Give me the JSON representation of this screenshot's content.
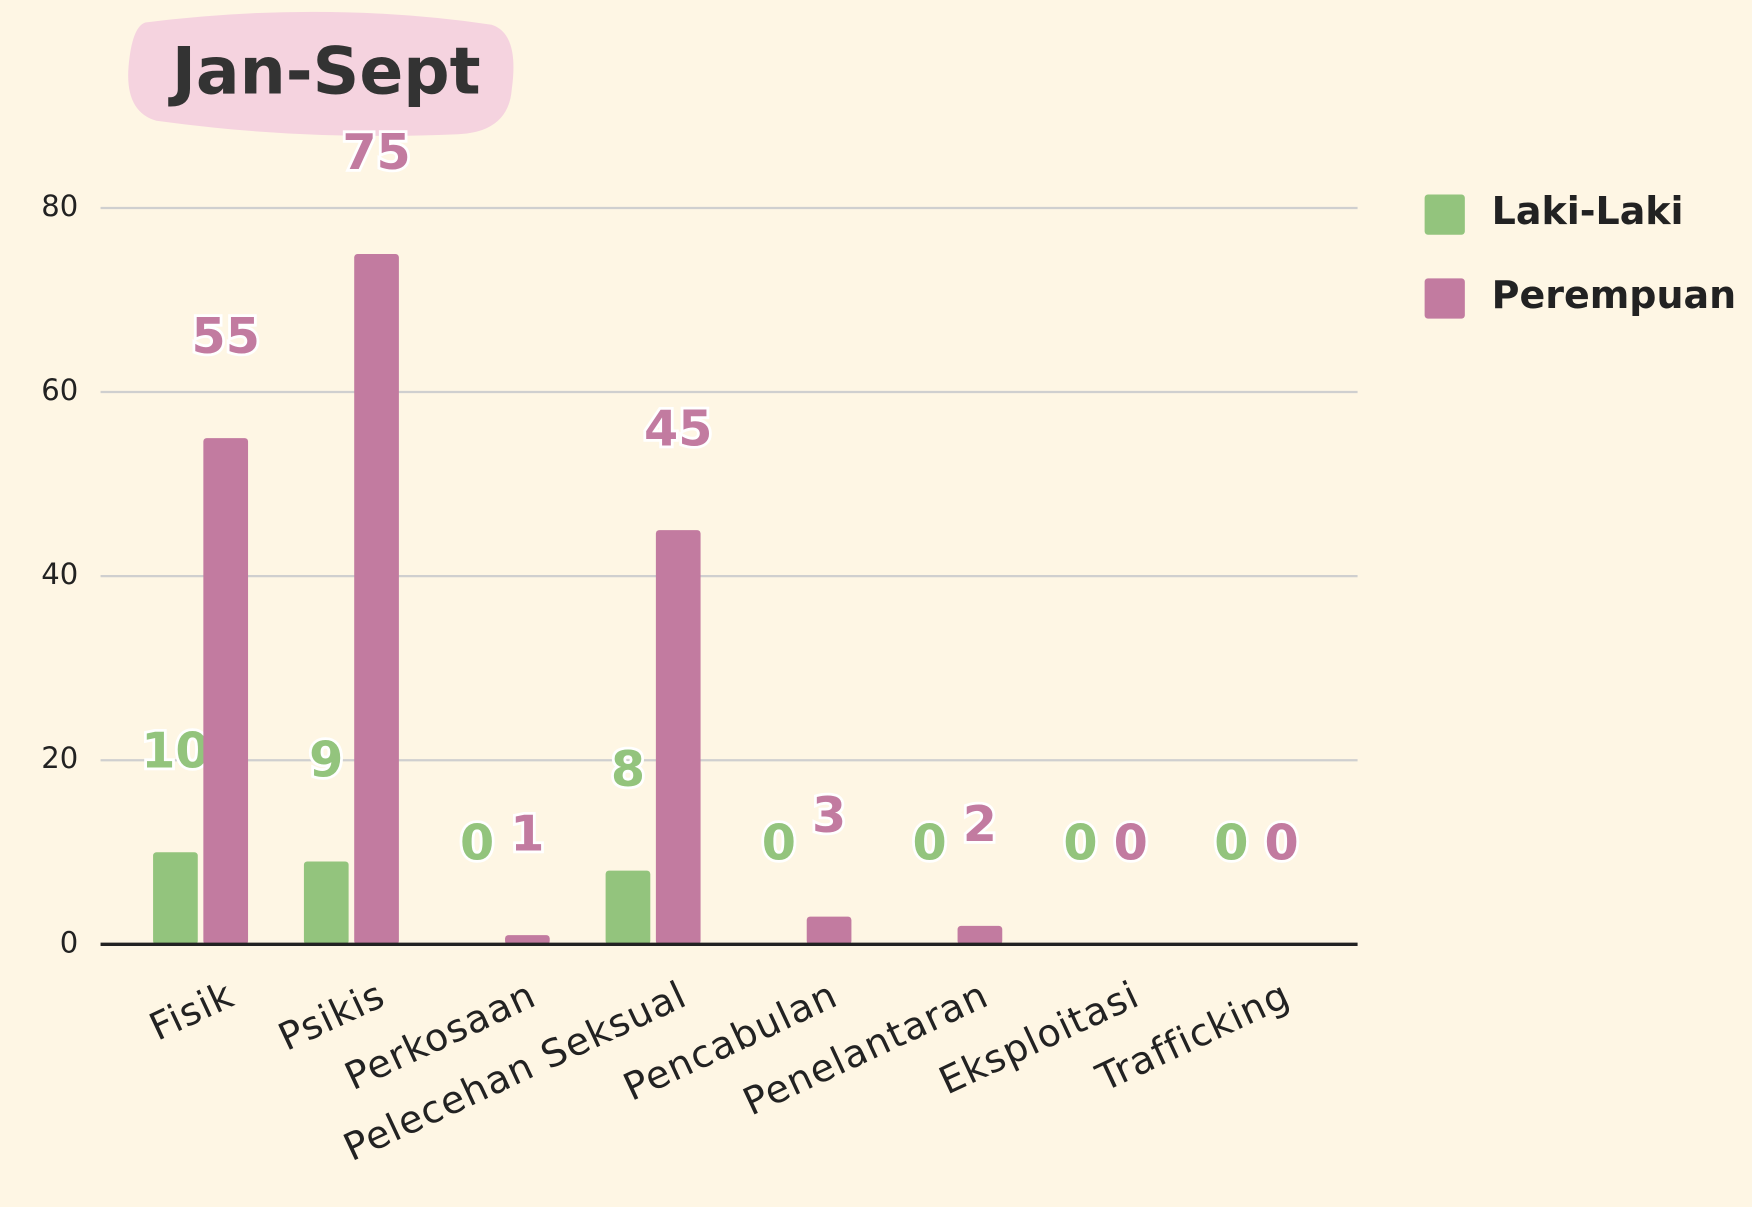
{
  "chart_data": {
    "type": "bar",
    "title": "Jan-Sept",
    "categories": [
      "Fisik",
      "Psikis",
      "Perkosaan",
      "Pelecehan Seksual",
      "Pencabulan",
      "Penelantaran",
      "Eksploitasi",
      "Trafficking"
    ],
    "series": [
      {
        "name": "Laki-Laki",
        "color": "#93c47d",
        "values": [
          10,
          9,
          0,
          8,
          0,
          0,
          0,
          0
        ]
      },
      {
        "name": "Perempuan",
        "color": "#c27ba0",
        "values": [
          55,
          75,
          1,
          45,
          3,
          2,
          0,
          0
        ]
      }
    ],
    "ylim": [
      0,
      80
    ],
    "yticks": [
      0,
      20,
      40,
      60,
      80
    ],
    "grid": true,
    "legend": "right"
  }
}
